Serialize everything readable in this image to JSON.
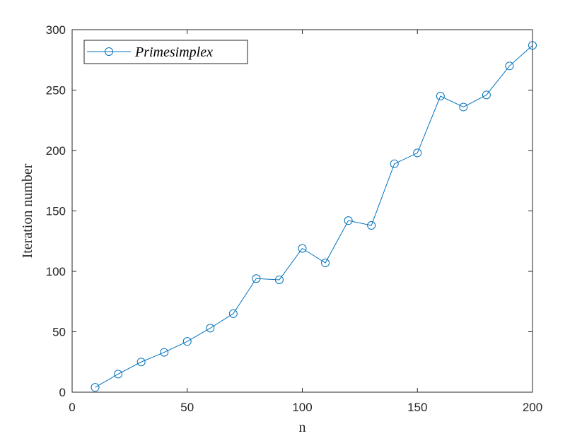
{
  "chart_data": {
    "type": "line",
    "xlabel": "n",
    "ylabel": "Iteration number",
    "xlim": [
      0,
      200
    ],
    "ylim": [
      0,
      300
    ],
    "xticks": [
      0,
      50,
      100,
      150,
      200
    ],
    "yticks": [
      0,
      50,
      100,
      150,
      200,
      250,
      300
    ],
    "grid": false,
    "legend_position": "top-left",
    "series": [
      {
        "name": "Primesimplex",
        "color": "#0072BD",
        "marker": "circle",
        "x": [
          10,
          20,
          30,
          40,
          50,
          60,
          70,
          80,
          90,
          100,
          110,
          120,
          130,
          140,
          150,
          160,
          170,
          180,
          190,
          200
        ],
        "y": [
          4,
          15,
          25,
          33,
          42,
          53,
          65,
          94,
          93,
          119,
          107,
          142,
          138,
          189,
          198,
          245,
          236,
          246,
          270,
          287
        ]
      }
    ]
  }
}
